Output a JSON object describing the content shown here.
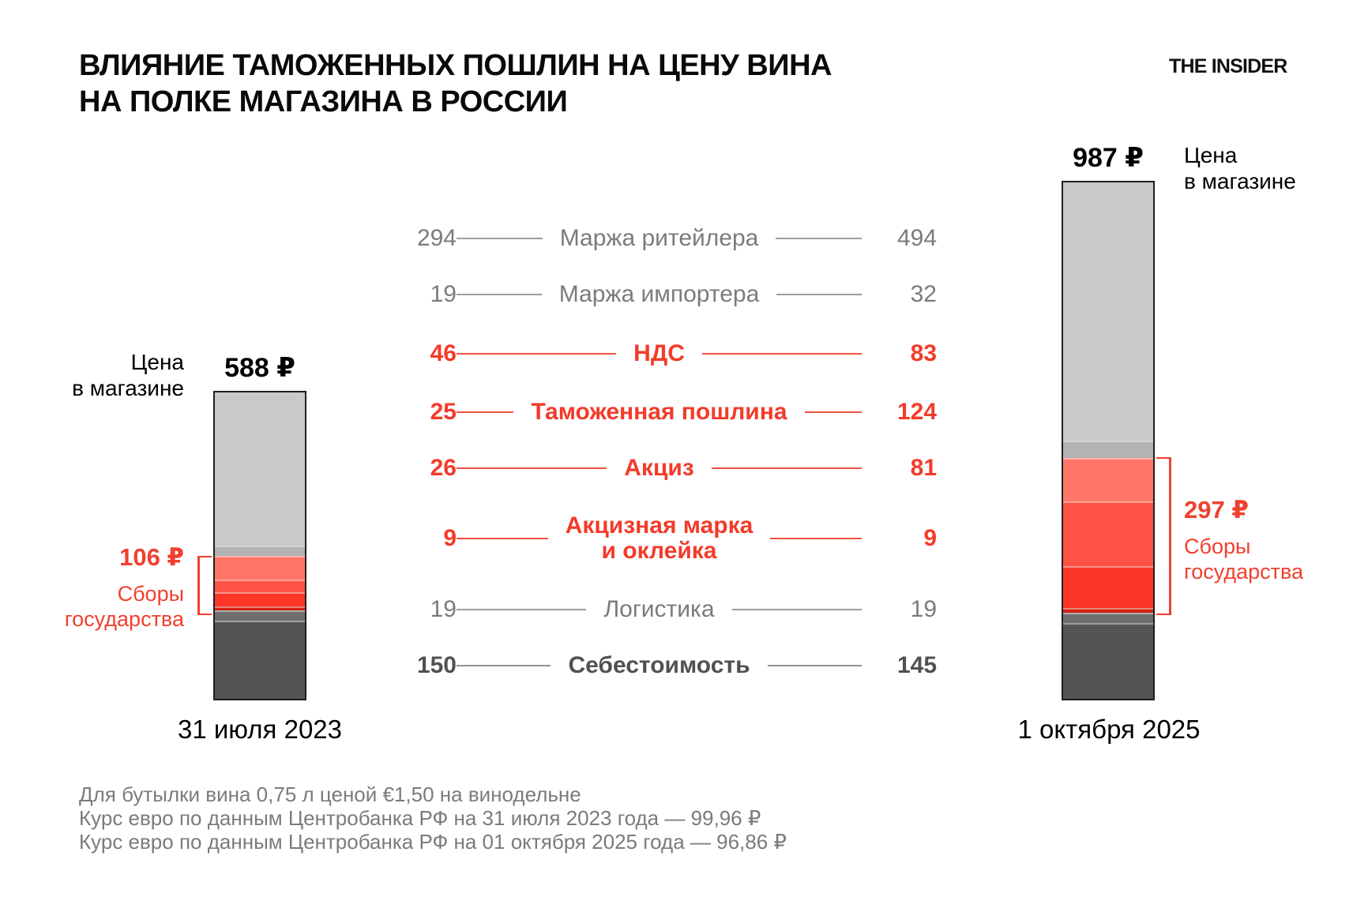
{
  "title": "ВЛИЯНИЕ ТАМОЖЕННЫХ ПОШЛИН НА ЦЕНУ ВИНА\nНА ПОЛКЕ МАГАЗИНА В РОССИИ",
  "logo": "THE INSIDER",
  "colors": {
    "accent_red_text": "#f0402e",
    "gray_text": "#7b7b7b",
    "dark_row_text": "#515155",
    "bar_border": "#1f1f1f"
  },
  "chart_data": {
    "type": "bar",
    "subtype": "stacked-columns",
    "title": "Влияние таможенных пошлин на цену вина на полке магазина в России",
    "unit": "₽",
    "categories": [
      "31 июля 2023",
      "1 октября 2025"
    ],
    "totals": [
      588,
      987
    ],
    "state_fees_totals": [
      106,
      297
    ],
    "series": [
      {
        "name": "Маржа ритейлера",
        "values": [
          294,
          494
        ],
        "color": "#c9c9c9",
        "group": "other"
      },
      {
        "name": "Маржа импортера",
        "values": [
          19,
          32
        ],
        "color": "#b3b3b3",
        "group": "other"
      },
      {
        "name": "НДС",
        "values": [
          46,
          83
        ],
        "color": "#ff7668",
        "group": "state"
      },
      {
        "name": "Таможенная пошлина",
        "values": [
          25,
          124
        ],
        "color": "#fe5245",
        "group": "state"
      },
      {
        "name": "Акциз",
        "values": [
          26,
          81
        ],
        "color": "#fb3628",
        "group": "state"
      },
      {
        "name": "Акцизная марка и оклейка",
        "values": [
          9,
          9
        ],
        "color": "#d22111",
        "group": "state"
      },
      {
        "name": "Логистика",
        "values": [
          19,
          19
        ],
        "color": "#6e6e6e",
        "group": "other"
      },
      {
        "name": "Себестоимость",
        "values": [
          150,
          145
        ],
        "color": "#545454",
        "group": "other"
      }
    ],
    "legend_position": "center-list",
    "grid": false
  },
  "rows": [
    {
      "left": "294",
      "label": "Маржа ритейлера",
      "right": "494",
      "style": "gray"
    },
    {
      "left": "19",
      "label": "Маржа импортера",
      "right": "32",
      "style": "gray"
    },
    {
      "left": "46",
      "label": "НДС",
      "right": "83",
      "style": "red"
    },
    {
      "left": "25",
      "label": "Таможенная пошлина",
      "right": "124",
      "style": "red"
    },
    {
      "left": "26",
      "label": "Акциз",
      "right": "81",
      "style": "red"
    },
    {
      "left": "9",
      "label": "Акцизная марка\nи оклейка",
      "right": "9",
      "style": "red"
    },
    {
      "left": "19",
      "label": "Логистика",
      "right": "19",
      "style": "gray"
    },
    {
      "left": "150",
      "label": "Себестоимость",
      "right": "145",
      "style": "dark"
    }
  ],
  "left_chart": {
    "price": "588 ₽",
    "shop_label": "Цена\nв магазине",
    "fees_amount": "106 ₽",
    "fees_label": "Сборы\nгосударства",
    "date": "31 июля 2023"
  },
  "right_chart": {
    "price": "987 ₽",
    "shop_label": "Цена\nв магазине",
    "fees_amount": "297 ₽",
    "fees_label": "Сборы\nгосударства",
    "date": "1 октября 2025"
  },
  "footnotes": [
    "Для бутылки вина 0,75 л ценой €1,50 на винодельне",
    "Курс евро по данным Центробанка РФ на 31 июля 2023 года — 99,96 ₽",
    "Курс евро по данным Центробанка РФ на 01 октября 2025 года — 96,86 ₽"
  ]
}
